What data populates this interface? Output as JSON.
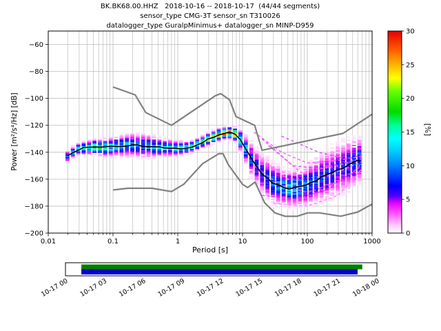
{
  "title": {
    "line1": "BK.BK68.00.HHZ   2018-10-16 -- 2018-10-17  (44/44 segments)",
    "line2": "sensor_type CMG-3T sensor_sn T310026",
    "line3": "datalogger_type GuralpMinimus+ datalogger_sn MINP-D959"
  },
  "axes": {
    "xlabel": "Period [s]",
    "ylabel": "Power [m²/s⁴/Hz] [dB]",
    "xscale": "log",
    "xlim": [
      0.01,
      1000
    ],
    "ylim": [
      -200,
      -50
    ],
    "x_ticks": [
      {
        "v": 0.01,
        "label": "0.01"
      },
      {
        "v": 0.1,
        "label": "0.1"
      },
      {
        "v": 1,
        "label": "1"
      },
      {
        "v": 10,
        "label": "10"
      },
      {
        "v": 100,
        "label": "100"
      },
      {
        "v": 1000,
        "label": "1000"
      }
    ],
    "y_ticks": [
      {
        "v": -60,
        "label": "−60"
      },
      {
        "v": -80,
        "label": "−80"
      },
      {
        "v": -100,
        "label": "−100"
      },
      {
        "v": -120,
        "label": "−120"
      },
      {
        "v": -140,
        "label": "−140"
      },
      {
        "v": -160,
        "label": "−160"
      },
      {
        "v": -180,
        "label": "−180"
      },
      {
        "v": -200,
        "label": "−200"
      }
    ]
  },
  "colorbar": {
    "label": "[%]",
    "min": 0,
    "max": 30,
    "ticks": [
      0,
      5,
      10,
      15,
      20,
      25,
      30
    ],
    "stops": [
      [
        0,
        "#ffffff"
      ],
      [
        1.2,
        "#ffc8ff"
      ],
      [
        3,
        "#ff50ff"
      ],
      [
        4.5,
        "#e000ff"
      ],
      [
        5.5,
        "#5000ff"
      ],
      [
        7,
        "#0000ff"
      ],
      [
        10,
        "#0080ff"
      ],
      [
        12,
        "#00c8ff"
      ],
      [
        14,
        "#00ffff"
      ],
      [
        16,
        "#00ff96"
      ],
      [
        18,
        "#00dc00"
      ],
      [
        21,
        "#64ff00"
      ],
      [
        23,
        "#ffff00"
      ],
      [
        25,
        "#ffb400"
      ],
      [
        27,
        "#ff6400"
      ],
      [
        30,
        "#e60000"
      ]
    ]
  },
  "chart_data": {
    "type": "heatmap",
    "title": "BK.BK68.00.HHZ   2018-10-16 -- 2018-10-17  (44/44 segments)",
    "xlabel": "Period [s]",
    "ylabel": "Power [m²/s⁴/Hz] [dB]",
    "xlim": [
      0.01,
      1000
    ],
    "ylim": [
      -200,
      -50
    ],
    "colorbar_label": "[%]",
    "colorbar_range": [
      0,
      30
    ],
    "noise_models": {
      "nhnm": [
        [
          0.1,
          -91.5
        ],
        [
          0.22,
          -97.4
        ],
        [
          0.32,
          -110.5
        ],
        [
          0.8,
          -120.0
        ],
        [
          3.8,
          -98.0
        ],
        [
          4.6,
          -96.5
        ],
        [
          6.3,
          -101.0
        ],
        [
          7.9,
          -113.5
        ],
        [
          15.4,
          -120.0
        ],
        [
          20,
          -138.5
        ],
        [
          354.8,
          -126.0
        ],
        [
          1000,
          -111.8
        ]
      ],
      "nlnm": [
        [
          0.1,
          -168.0
        ],
        [
          0.17,
          -166.7
        ],
        [
          0.4,
          -166.7
        ],
        [
          0.8,
          -169.2
        ],
        [
          1.24,
          -163.7
        ],
        [
          2.4,
          -148.6
        ],
        [
          4.3,
          -141.1
        ],
        [
          5,
          -141.1
        ],
        [
          6,
          -149.0
        ],
        [
          10,
          -163.8
        ],
        [
          12,
          -166.2
        ],
        [
          15.6,
          -162.1
        ],
        [
          21.9,
          -177.5
        ],
        [
          31.6,
          -185.0
        ],
        [
          45,
          -187.5
        ],
        [
          70,
          -187.5
        ],
        [
          101,
          -185.0
        ],
        [
          154,
          -185.0
        ],
        [
          328,
          -187.5
        ],
        [
          600,
          -184.4
        ],
        [
          1000,
          -178.5
        ]
      ]
    },
    "psd_distribution": {
      "profile_columns": [
        "period_s",
        "mean_db",
        "std_db",
        "max_percent"
      ],
      "profile": [
        [
          0.018,
          -145,
          2.0,
          8
        ],
        [
          0.022,
          -141,
          2.0,
          10
        ],
        [
          0.03,
          -137.5,
          2.0,
          14
        ],
        [
          0.05,
          -136,
          2.5,
          17
        ],
        [
          0.08,
          -136.5,
          3.0,
          14
        ],
        [
          0.12,
          -135.5,
          3.5,
          12
        ],
        [
          0.2,
          -134.5,
          4.0,
          10
        ],
        [
          0.35,
          -135.5,
          4.0,
          10
        ],
        [
          0.6,
          -136.5,
          3.0,
          12
        ],
        [
          1.0,
          -137,
          2.5,
          13
        ],
        [
          1.5,
          -136.5,
          2.0,
          15
        ],
        [
          2.5,
          -132,
          2.0,
          18
        ],
        [
          4.0,
          -127.5,
          2.0,
          24
        ],
        [
          6.0,
          -125,
          1.8,
          29
        ],
        [
          8.0,
          -127,
          2.5,
          22
        ],
        [
          10,
          -133,
          4.0,
          13
        ],
        [
          14,
          -146,
          6.0,
          8
        ],
        [
          20,
          -156,
          7.0,
          7
        ],
        [
          30,
          -163,
          7.0,
          9
        ],
        [
          45,
          -166.5,
          6.0,
          11
        ],
        [
          60,
          -167,
          6.0,
          12
        ],
        [
          90,
          -165.5,
          6.5,
          10
        ],
        [
          150,
          -160,
          8.0,
          8
        ],
        [
          250,
          -155,
          9.0,
          7
        ],
        [
          400,
          -150,
          9.0,
          7
        ],
        [
          600,
          -146,
          8.0,
          9
        ],
        [
          700,
          -145,
          7.0,
          9
        ]
      ]
    },
    "outlier_traces": [
      [
        [
          15,
          -125
        ],
        [
          40,
          -140
        ],
        [
          100,
          -148
        ],
        [
          300,
          -146
        ],
        [
          700,
          -143
        ]
      ],
      [
        [
          20,
          -130
        ],
        [
          60,
          -150
        ],
        [
          150,
          -152
        ],
        [
          700,
          -145
        ]
      ],
      [
        [
          15,
          -140
        ],
        [
          50,
          -160
        ],
        [
          200,
          -158
        ],
        [
          700,
          -147
        ]
      ],
      [
        [
          25,
          -135
        ],
        [
          80,
          -155
        ],
        [
          300,
          -150
        ],
        [
          700,
          -144
        ]
      ],
      [
        [
          20,
          -172
        ],
        [
          60,
          -175
        ],
        [
          200,
          -168
        ],
        [
          700,
          -150
        ]
      ],
      [
        [
          30,
          -178
        ],
        [
          100,
          -180
        ],
        [
          300,
          -172
        ],
        [
          700,
          -152
        ]
      ],
      [
        [
          15,
          -150
        ],
        [
          40,
          -165
        ],
        [
          100,
          -170
        ],
        [
          400,
          -160
        ],
        [
          700,
          -148
        ]
      ],
      [
        [
          40,
          -128
        ],
        [
          150,
          -140
        ],
        [
          400,
          -145
        ],
        [
          700,
          -142
        ]
      ]
    ]
  },
  "timeline": {
    "ticks": [
      "10-17 00",
      "10-17 03",
      "10-17 06",
      "10-17 09",
      "10-17 12",
      "10-17 15",
      "10-17 18",
      "10-17 21",
      "10-18 00"
    ],
    "green": {
      "start_frac": 0.051,
      "end_frac": 0.953,
      "color": "#008000"
    },
    "blue": {
      "start_frac": 0.051,
      "end_frac": 0.938,
      "color": "#0000cd"
    }
  }
}
